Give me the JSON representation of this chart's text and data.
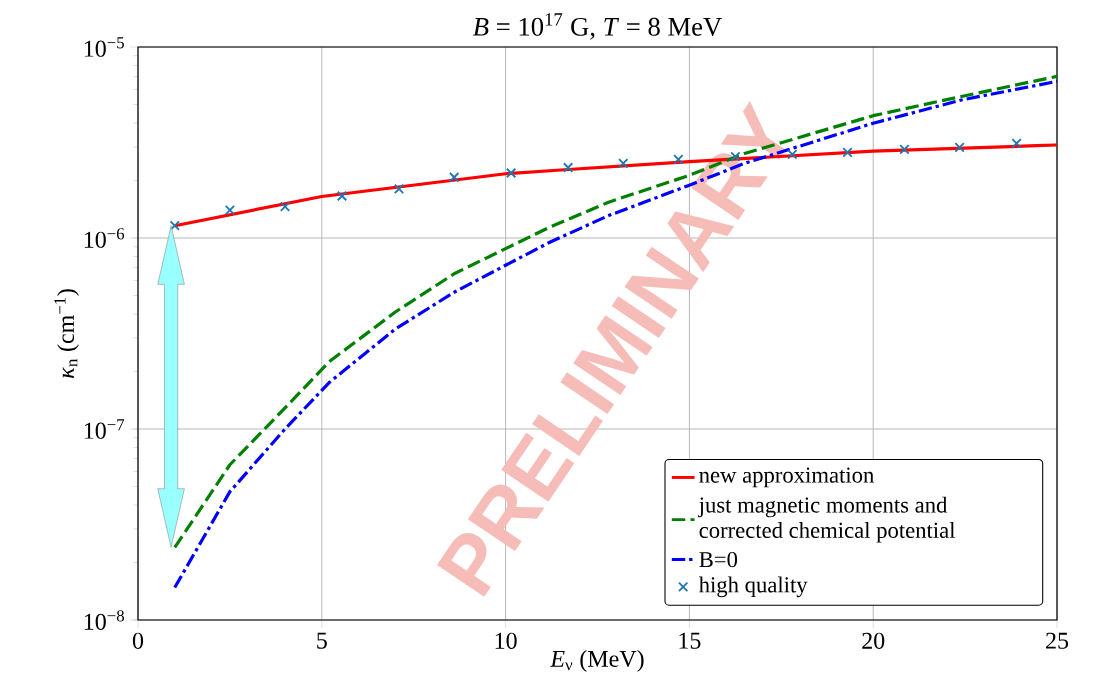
{
  "chart_data": {
    "type": "line",
    "title": "*B* = 10$^{17}$ G, *T* = 8 MeV",
    "xlabel": "*E*$_{ν}$ (MeV)",
    "ylabel": "*κ*$_{n}$ (cm$^{−1}$)",
    "xlim": [
      0,
      25
    ],
    "ylim": [
      1e-08,
      1e-05
    ],
    "log": "y",
    "grid": true,
    "legend": "bottom right",
    "xticks": [
      0,
      5,
      10,
      15,
      20,
      25
    ],
    "yticks": [
      {
        "value": 1e-08,
        "label": "10$^{−8}$"
      },
      {
        "value": 1e-07,
        "label": "10$^{−7}$"
      },
      {
        "value": 1e-06,
        "label": "10$^{−6}$"
      },
      {
        "value": 1e-05,
        "label": "10$^{−5}$"
      }
    ],
    "annotations": [
      "PRELIMINARY"
    ],
    "series": [
      {
        "name": "new approximation",
        "type": "line",
        "color": "#ff0000",
        "line_style": "solid",
        "x": [
          1,
          5,
          10,
          11.5,
          15,
          20,
          25
        ],
        "values": [
          1.16e-06,
          1.65e-06,
          2.17e-06,
          2.27e-06,
          2.51e-06,
          2.85e-06,
          3.07e-06
        ]
      },
      {
        "name": "just magnetic moments and corrected chemical potential",
        "type": "line",
        "color": "#008000",
        "line_style": "dashed",
        "x": [
          1,
          2.5,
          4,
          5.2,
          7,
          8.6,
          10,
          11.2,
          12.8,
          15,
          16.5,
          20,
          22.4,
          25
        ],
        "values": [
          2.4e-08,
          6.5e-08,
          1.29e-07,
          2.25e-07,
          4.1e-07,
          6.5e-07,
          8.8e-07,
          1.14e-06,
          1.54e-06,
          2.13e-06,
          2.77e-06,
          4.37e-06,
          5.51e-06,
          7.02e-06
        ]
      },
      {
        "name": "B=0",
        "type": "line",
        "color": "#0000ff",
        "line_style": "dashdot",
        "x": [
          1,
          2.5,
          4,
          5.2,
          7,
          8.6,
          10,
          11.2,
          12.8,
          15,
          16.5,
          20,
          22.4,
          25
        ],
        "values": [
          1.48e-08,
          4.7e-08,
          1e-07,
          1.75e-07,
          3.34e-07,
          5.2e-07,
          7.2e-07,
          9.5e-07,
          1.31e-06,
          1.89e-06,
          2.46e-06,
          3.99e-06,
          5.28e-06,
          6.61e-06
        ]
      },
      {
        "name": "high quality",
        "type": "scatter",
        "color": "#1f77b4",
        "marker": "cross",
        "x": [
          1,
          2.5,
          4,
          5.55,
          7.1,
          8.6,
          10.15,
          11.7,
          13.2,
          14.7,
          16.25,
          17.8,
          19.3,
          20.85,
          22.35,
          23.9
        ],
        "values": [
          1.16e-06,
          1.4e-06,
          1.46e-06,
          1.66e-06,
          1.81e-06,
          2.08e-06,
          2.19e-06,
          2.34e-06,
          2.46e-06,
          2.58e-06,
          2.67e-06,
          2.74e-06,
          2.81e-06,
          2.91e-06,
          2.98e-06,
          3.13e-06
        ]
      }
    ]
  }
}
